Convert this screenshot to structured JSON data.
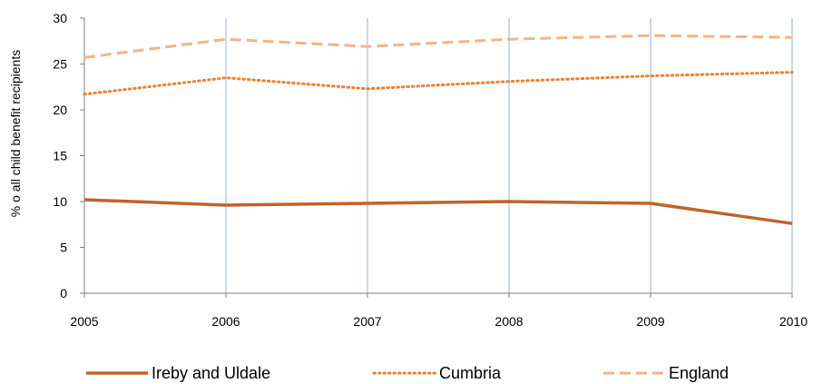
{
  "chart_data": {
    "type": "line",
    "title": "",
    "xlabel": "",
    "ylabel": "% o all child benefit recipients",
    "x": [
      "2005",
      "2006",
      "2007",
      "2008",
      "2009",
      "2010"
    ],
    "ylim": [
      0,
      30
    ],
    "yticks": [
      "0",
      "5",
      "10",
      "15",
      "20",
      "25",
      "30"
    ],
    "grid": "vertical",
    "legend_position": "bottom",
    "series": [
      {
        "name": "Ireby and Uldale",
        "values": [
          10.2,
          9.6,
          9.8,
          10.0,
          9.8,
          7.6
        ],
        "color": "#C0642A",
        "style": "solid"
      },
      {
        "name": "Cumbria",
        "values": [
          21.7,
          23.5,
          22.3,
          23.1,
          23.7,
          24.1
        ],
        "color": "#E9822F",
        "style": "dotted"
      },
      {
        "name": "England",
        "values": [
          25.7,
          27.7,
          26.9,
          27.7,
          28.1,
          27.9
        ],
        "color": "#F3B488",
        "style": "dashed"
      }
    ]
  }
}
